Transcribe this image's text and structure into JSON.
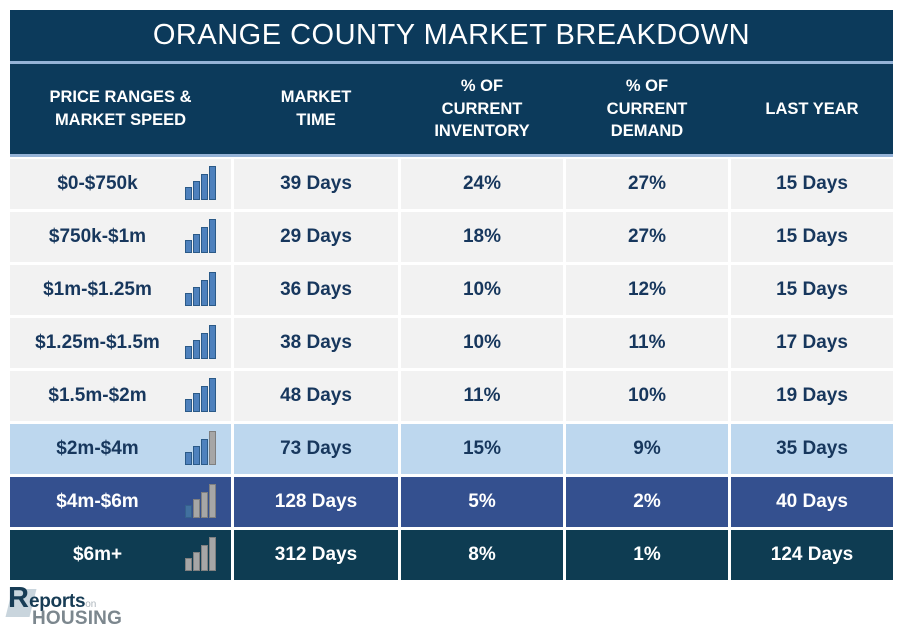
{
  "title": "ORANGE COUNTY MARKET BREAKDOWN",
  "columns": [
    "PRICE RANGES &\nMARKET SPEED",
    "MARKET\nTIME",
    "% OF\nCURRENT\nINVENTORY",
    "% OF\nCURRENT\nDEMAND",
    "LAST YEAR"
  ],
  "rows": [
    {
      "price_range": "$0-$750k",
      "market_time": "39 Days",
      "pct_inventory": "24%",
      "pct_demand": "27%",
      "last_year": "15 Days",
      "theme": "light",
      "icon": "bar-chart-icon",
      "icon_bars": [
        "blue",
        "blue",
        "blue",
        "blue"
      ]
    },
    {
      "price_range": "$750k-$1m",
      "market_time": "29 Days",
      "pct_inventory": "18%",
      "pct_demand": "27%",
      "last_year": "15 Days",
      "theme": "light",
      "icon": "bar-chart-icon",
      "icon_bars": [
        "blue",
        "blue",
        "blue",
        "blue"
      ]
    },
    {
      "price_range": "$1m-$1.25m",
      "market_time": "36 Days",
      "pct_inventory": "10%",
      "pct_demand": "12%",
      "last_year": "15 Days",
      "theme": "light",
      "icon": "bar-chart-icon",
      "icon_bars": [
        "blue",
        "blue",
        "blue",
        "blue"
      ]
    },
    {
      "price_range": "$1.25m-$1.5m",
      "market_time": "38 Days",
      "pct_inventory": "10%",
      "pct_demand": "11%",
      "last_year": "17 Days",
      "theme": "light",
      "icon": "bar-chart-icon",
      "icon_bars": [
        "blue",
        "blue",
        "blue",
        "blue"
      ]
    },
    {
      "price_range": "$1.5m-$2m",
      "market_time": "48 Days",
      "pct_inventory": "11%",
      "pct_demand": "10%",
      "last_year": "19 Days",
      "theme": "light",
      "icon": "bar-chart-icon",
      "icon_bars": [
        "blue",
        "blue",
        "blue",
        "blue"
      ]
    },
    {
      "price_range": "$2m-$4m",
      "market_time": "73 Days",
      "pct_inventory": "15%",
      "pct_demand": "9%",
      "last_year": "35 Days",
      "theme": "paleblue",
      "icon": "bar-chart-icon",
      "icon_bars": [
        "blue",
        "blue",
        "blue",
        "gray"
      ]
    },
    {
      "price_range": "$4m-$6m",
      "market_time": "128 Days",
      "pct_inventory": "5%",
      "pct_demand": "2%",
      "last_year": "40 Days",
      "theme": "indigo",
      "icon": "bar-chart-icon",
      "icon_bars": [
        "bluemuted",
        "gray",
        "gray",
        "gray"
      ]
    },
    {
      "price_range": "$6m+",
      "market_time": "312 Days",
      "pct_inventory": "8%",
      "pct_demand": "1%",
      "last_year": "124 Days",
      "theme": "navy",
      "icon": "bar-chart-icon",
      "icon_bars": [
        "gray",
        "gray",
        "gray",
        "gray"
      ]
    }
  ],
  "logo": {
    "r": "R",
    "eports": "eports",
    "on": "on",
    "housing": "HOUSING"
  },
  "colors": {
    "header_navy": "#0C3A5B",
    "divider_blue": "#95B3D7",
    "row_light": "#F2F2F2",
    "row_pale_blue": "#BDD7EE",
    "row_indigo": "#34508F",
    "row_navy": "#0E3C52",
    "text_navy": "#17375D",
    "bar_blue": "#4E81BD",
    "bar_gray": "#A6A6A6"
  },
  "chart_data": {
    "type": "table",
    "title": "ORANGE COUNTY MARKET BREAKDOWN",
    "columns": [
      "PRICE RANGES & MARKET SPEED",
      "MARKET TIME",
      "% OF CURRENT INVENTORY",
      "% OF CURRENT DEMAND",
      "LAST YEAR"
    ],
    "rows": [
      [
        "$0-$750k",
        "39 Days",
        "24%",
        "27%",
        "15 Days"
      ],
      [
        "$750k-$1m",
        "29 Days",
        "18%",
        "27%",
        "15 Days"
      ],
      [
        "$1m-$1.25m",
        "36 Days",
        "10%",
        "12%",
        "15 Days"
      ],
      [
        "$1.25m-$1.5m",
        "38 Days",
        "10%",
        "11%",
        "17 Days"
      ],
      [
        "$1.5m-$2m",
        "48 Days",
        "11%",
        "10%",
        "19 Days"
      ],
      [
        "$2m-$4m",
        "73 Days",
        "15%",
        "9%",
        "35 Days"
      ],
      [
        "$4m-$6m",
        "128 Days",
        "5%",
        "2%",
        "40 Days"
      ],
      [
        "$6m+",
        "312 Days",
        "8%",
        "1%",
        "124 Days"
      ]
    ],
    "market_time_days": [
      39,
      29,
      36,
      38,
      48,
      73,
      128,
      312
    ],
    "pct_current_inventory": [
      24,
      18,
      10,
      10,
      11,
      15,
      5,
      8
    ],
    "pct_current_demand": [
      27,
      27,
      12,
      11,
      10,
      9,
      2,
      1
    ],
    "last_year_days": [
      15,
      15,
      15,
      17,
      19,
      35,
      40,
      124
    ]
  }
}
